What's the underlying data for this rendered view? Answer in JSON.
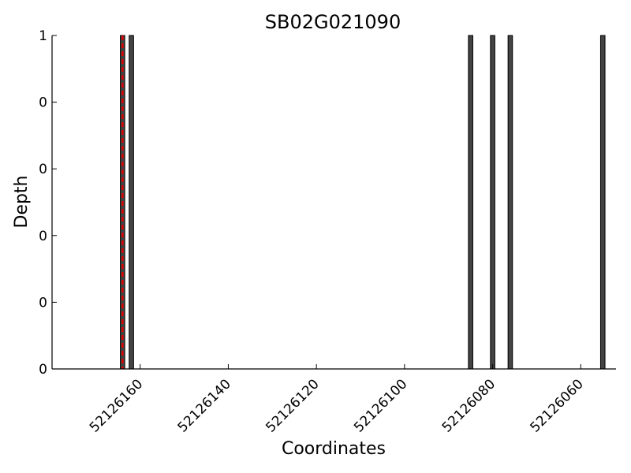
{
  "chart_data": {
    "type": "bar",
    "title": "SB02G021090",
    "xlabel": "Coordinates",
    "ylabel": "Depth",
    "x_axis_reversed": true,
    "xlim": [
      52126052,
      52126180
    ],
    "ylim": [
      0,
      1
    ],
    "x_ticks": [
      52126160,
      52126140,
      52126120,
      52126100,
      52126080,
      52126060
    ],
    "x_tick_labels": [
      "52126160",
      "52126140",
      "52126120",
      "52126100",
      "52126080",
      "52126060"
    ],
    "y_ticks": [
      0,
      0.2,
      0.4,
      0.6,
      0.8,
      1
    ],
    "y_tick_labels": [
      "0",
      "0",
      "0",
      "0",
      "0",
      "1"
    ],
    "bar_width": 1,
    "bars": [
      {
        "x": 52126164,
        "value": 1
      },
      {
        "x": 52126162,
        "value": 1
      },
      {
        "x": 52126085,
        "value": 1
      },
      {
        "x": 52126080,
        "value": 1
      },
      {
        "x": 52126076,
        "value": 1
      },
      {
        "x": 52126055,
        "value": 1
      }
    ],
    "marker_line": {
      "x": 52126164,
      "color": "#dd0000",
      "style": "dashed"
    },
    "bar_color": "#444444",
    "bar_edge_color": "#000000",
    "grid": false
  }
}
